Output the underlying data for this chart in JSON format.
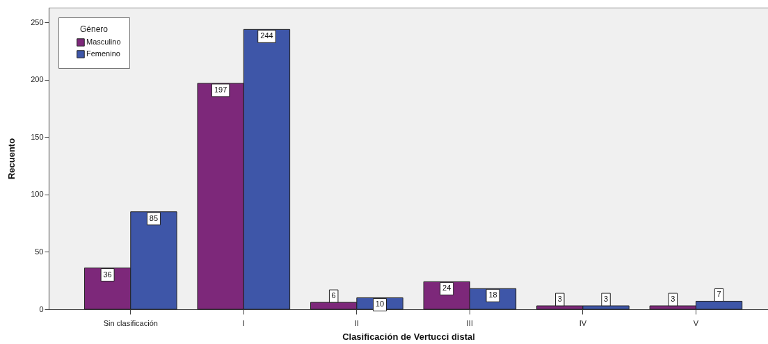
{
  "chart_data": {
    "type": "bar",
    "xlabel": "Clasificación de Vertucci distal",
    "ylabel": "Recuento",
    "legend_title": "Género",
    "categories": [
      "Sin clasificación",
      "I",
      "II",
      "III",
      "IV",
      "V"
    ],
    "series": [
      {
        "name": "Masculino",
        "color": "#7d287a",
        "values": [
          36,
          197,
          6,
          24,
          3,
          3
        ]
      },
      {
        "name": "Femenino",
        "color": "#3e56a8",
        "values": [
          85,
          244,
          10,
          18,
          3,
          7
        ]
      }
    ],
    "ylim": [
      0,
      263
    ],
    "yticks": [
      0,
      50,
      100,
      150,
      200,
      250
    ],
    "grid": false,
    "legend": "top left",
    "data_labels": true
  }
}
